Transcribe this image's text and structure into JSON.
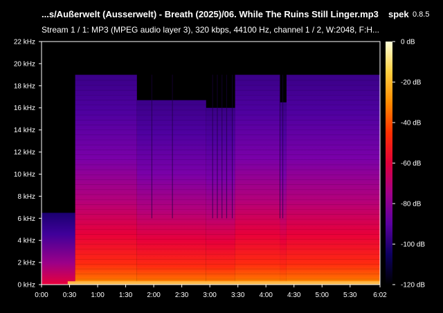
{
  "header": {
    "title": "...s/Außerwelt (Ausserwelt) - Breath (2025)/06. While The Ruins Still Linger.mp3",
    "app_name": "spek",
    "app_version": "0.8.5",
    "subtitle": "Stream 1 / 1: MP3 (MPEG audio layer 3), 320 kbps, 44100 Hz, channel 1 / 2, W:2048, F:H..."
  },
  "chart_data": {
    "type": "heatmap",
    "title": "",
    "xlabel": "",
    "ylabel": "",
    "x_unit": "seconds",
    "y_unit": "kHz",
    "xlim": [
      0,
      362
    ],
    "ylim": [
      0,
      22
    ],
    "x_ticks": [
      {
        "value": 0,
        "label": "0:00"
      },
      {
        "value": 30,
        "label": "0:30"
      },
      {
        "value": 60,
        "label": "1:00"
      },
      {
        "value": 90,
        "label": "1:30"
      },
      {
        "value": 120,
        "label": "2:00"
      },
      {
        "value": 150,
        "label": "2:30"
      },
      {
        "value": 180,
        "label": "3:00"
      },
      {
        "value": 210,
        "label": "3:30"
      },
      {
        "value": 240,
        "label": "4:00"
      },
      {
        "value": 270,
        "label": "4:30"
      },
      {
        "value": 300,
        "label": "5:00"
      },
      {
        "value": 330,
        "label": "5:30"
      },
      {
        "value": 362,
        "label": "6:02"
      }
    ],
    "y_ticks": [
      {
        "value": 0,
        "label": "0 kHz"
      },
      {
        "value": 2,
        "label": "2 kHz"
      },
      {
        "value": 4,
        "label": "4 kHz"
      },
      {
        "value": 6,
        "label": "6 kHz"
      },
      {
        "value": 8,
        "label": "8 kHz"
      },
      {
        "value": 10,
        "label": "10 kHz"
      },
      {
        "value": 12,
        "label": "12 kHz"
      },
      {
        "value": 14,
        "label": "14 kHz"
      },
      {
        "value": 16,
        "label": "16 kHz"
      },
      {
        "value": 18,
        "label": "18 kHz"
      },
      {
        "value": 20,
        "label": "20 kHz"
      },
      {
        "value": 22,
        "label": "22 kHz"
      }
    ],
    "colorbar": {
      "range_db": [
        -120,
        0
      ],
      "ticks": [
        {
          "value": 0,
          "label": "0 dB"
        },
        {
          "value": -20,
          "label": "-20 dB"
        },
        {
          "value": -40,
          "label": "-40 dB"
        },
        {
          "value": -60,
          "label": "-60 dB"
        },
        {
          "value": -80,
          "label": "-80 dB"
        },
        {
          "value": -100,
          "label": "-100 dB"
        },
        {
          "value": -120,
          "label": "-120 dB"
        }
      ],
      "colors": [
        "#000000",
        "#0d0060",
        "#5a00a0",
        "#a0008a",
        "#e0003a",
        "#ff3000",
        "#ff8c00",
        "#ffd040",
        "#ffffd8"
      ]
    },
    "segments": [
      {
        "t_start": 0,
        "t_end": 36,
        "cutoff_khz": 6.5
      },
      {
        "t_start": 36,
        "t_end": 102,
        "cutoff_khz": 19.0
      },
      {
        "t_start": 102,
        "t_end": 176,
        "cutoff_khz": 16.7
      },
      {
        "t_start": 176,
        "t_end": 207,
        "cutoff_khz": 16.0
      },
      {
        "t_start": 207,
        "t_end": 255,
        "cutoff_khz": 19.0
      },
      {
        "t_start": 255,
        "t_end": 262,
        "cutoff_khz": 16.5
      },
      {
        "t_start": 262,
        "t_end": 362,
        "cutoff_khz": 19.0
      }
    ]
  }
}
